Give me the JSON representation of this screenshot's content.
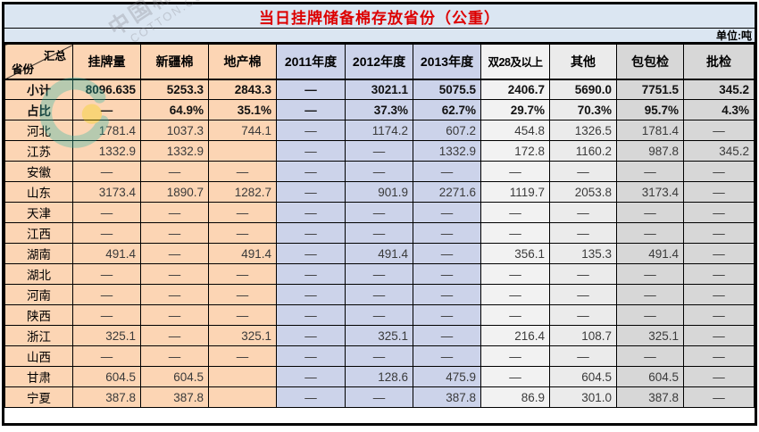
{
  "title": "当日挂牌储备棉存放省份（公重）",
  "unit_note": "单位:吨",
  "watermark": {
    "cn": "中国棉花网",
    "en": "COTTON.COM"
  },
  "colors": {
    "title_text": "#dd0000",
    "band_bg": "#dbe6f2",
    "peach": "#fcd5b4",
    "blue": "#ccd3ea",
    "light_gray_1": "#f2f2f2",
    "light_gray_2": "#ebebeb",
    "dark_gray": "#d7d7d7"
  },
  "table": {
    "corner": {
      "top_right": "汇总",
      "bottom_left": "省份"
    },
    "columns": [
      "挂牌量",
      "新疆棉",
      "地产棉",
      "2011年度",
      "2012年度",
      "2013年度",
      "双28及以上",
      "其他",
      "包包检",
      "批检"
    ],
    "rows": [
      {
        "label": "小计",
        "bold": true,
        "values": [
          "8096.635",
          "5253.3",
          "2843.3",
          "—",
          "3021.1",
          "5075.5",
          "2406.7",
          "5690.0",
          "7751.5",
          "345.2"
        ]
      },
      {
        "label": "占比",
        "bold": true,
        "values": [
          "—",
          "64.9%",
          "35.1%",
          "—",
          "37.3%",
          "62.7%",
          "29.7%",
          "70.3%",
          "95.7%",
          "4.3%"
        ]
      },
      {
        "label": "河北",
        "bold": false,
        "values": [
          "1781.4",
          "1037.3",
          "744.1",
          "—",
          "1174.2",
          "607.2",
          "454.8",
          "1326.5",
          "1781.4",
          "—"
        ]
      },
      {
        "label": "江苏",
        "bold": false,
        "values": [
          "1332.9",
          "1332.9",
          "",
          "—",
          "—",
          "1332.9",
          "172.8",
          "1160.2",
          "987.8",
          "345.2"
        ]
      },
      {
        "label": "安徽",
        "bold": false,
        "values": [
          "—",
          "—",
          "—",
          "—",
          "—",
          "—",
          "—",
          "—",
          "—",
          "—"
        ]
      },
      {
        "label": "山东",
        "bold": false,
        "values": [
          "3173.4",
          "1890.7",
          "1282.7",
          "—",
          "901.9",
          "2271.6",
          "1119.7",
          "2053.8",
          "3173.4",
          "—"
        ]
      },
      {
        "label": "天津",
        "bold": false,
        "values": [
          "—",
          "—",
          "—",
          "—",
          "—",
          "—",
          "—",
          "—",
          "—",
          "—"
        ]
      },
      {
        "label": "江西",
        "bold": false,
        "values": [
          "—",
          "—",
          "—",
          "—",
          "—",
          "—",
          "—",
          "—",
          "—",
          "—"
        ]
      },
      {
        "label": "湖南",
        "bold": false,
        "values": [
          "491.4",
          "—",
          "491.4",
          "—",
          "491.4",
          "—",
          "356.1",
          "135.3",
          "491.4",
          "—"
        ]
      },
      {
        "label": "湖北",
        "bold": false,
        "values": [
          "—",
          "—",
          "—",
          "—",
          "—",
          "—",
          "—",
          "—",
          "—",
          "—"
        ]
      },
      {
        "label": "河南",
        "bold": false,
        "values": [
          "—",
          "—",
          "—",
          "—",
          "—",
          "—",
          "—",
          "—",
          "—",
          "—"
        ]
      },
      {
        "label": "陕西",
        "bold": false,
        "values": [
          "—",
          "—",
          "—",
          "—",
          "—",
          "—",
          "—",
          "—",
          "—",
          "—"
        ]
      },
      {
        "label": "浙江",
        "bold": false,
        "values": [
          "325.1",
          "—",
          "325.1",
          "—",
          "325.1",
          "—",
          "216.4",
          "108.7",
          "325.1",
          "—"
        ]
      },
      {
        "label": "山西",
        "bold": false,
        "values": [
          "—",
          "—",
          "—",
          "—",
          "—",
          "—",
          "—",
          "—",
          "—",
          "—"
        ]
      },
      {
        "label": "甘肃",
        "bold": false,
        "values": [
          "604.5",
          "604.5",
          "",
          "—",
          "128.6",
          "475.9",
          "—",
          "604.5",
          "604.5",
          "—"
        ]
      },
      {
        "label": "宁夏",
        "bold": false,
        "values": [
          "387.8",
          "387.8",
          "",
          "—",
          "—",
          "387.8",
          "86.9",
          "301.0",
          "387.8",
          "—"
        ]
      }
    ]
  }
}
